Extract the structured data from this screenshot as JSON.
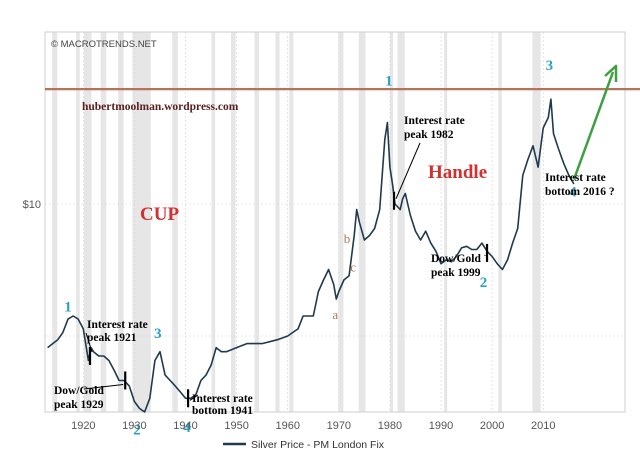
{
  "watermark": "© MACROTRENDS.NET",
  "blog": "hubertmoolman.wordpress.com",
  "legend_label": "Silver Price - PM London Fix",
  "colors": {
    "line": "#1f3a4f",
    "recession": "#e6e6e6",
    "resistance": "#b5735a",
    "wave": "#2aa0c8",
    "abc": "#b07a4e",
    "pattern": "#d23030",
    "arrow": "#3ca040",
    "grid": "#d4d4d4"
  },
  "chart_data": {
    "type": "line",
    "title": "",
    "xlabel": "",
    "ylabel": "",
    "series": [
      {
        "name": "Silver Price - PM London Fix",
        "x": [
          1913,
          1914,
          1915,
          1916,
          1917,
          1918,
          1919,
          1920,
          1921,
          1921.5,
          1922,
          1923,
          1924,
          1925,
          1926,
          1927,
          1928,
          1929,
          1930,
          1931,
          1932,
          1933,
          1934,
          1935,
          1936,
          1937,
          1938,
          1939,
          1940,
          1941,
          1942,
          1943,
          1944,
          1945,
          1946,
          1947,
          1948,
          1950,
          1952,
          1955,
          1958,
          1960,
          1962,
          1963,
          1964,
          1965,
          1966,
          1967,
          1968,
          1969,
          1969.5,
          1970,
          1971,
          1972,
          1973,
          1973.5,
          1974,
          1975,
          1976,
          1977,
          1978,
          1979,
          1979.5,
          1980,
          1980.5,
          1981,
          1982,
          1982.5,
          1983,
          1984,
          1985,
          1986,
          1987,
          1988,
          1989,
          1990,
          1991,
          1992,
          1993,
          1994,
          1995,
          1996,
          1997,
          1998,
          1999,
          2000,
          2001,
          2002,
          2003,
          2004,
          2005,
          2006,
          2007,
          2008,
          2009,
          2010,
          2011,
          2011.5,
          2012,
          2013,
          2014,
          2015,
          2016
        ],
        "y": [
          2.7,
          2.8,
          2.9,
          3.1,
          3.5,
          3.6,
          3.5,
          3.2,
          2.4,
          2.7,
          2.6,
          2.5,
          2.5,
          2.4,
          2.2,
          2.0,
          2.0,
          1.9,
          1.65,
          1.55,
          1.5,
          1.7,
          2.4,
          2.6,
          2.1,
          2.0,
          1.9,
          1.8,
          1.7,
          1.7,
          1.75,
          2.0,
          2.1,
          2.3,
          2.7,
          2.6,
          2.6,
          2.7,
          2.8,
          2.8,
          2.9,
          3.0,
          3.2,
          3.6,
          3.6,
          3.6,
          4.5,
          5.0,
          5.5,
          4.8,
          4.2,
          4.5,
          5.0,
          5.2,
          7.5,
          9.5,
          8.5,
          7.2,
          7.5,
          8.0,
          9.5,
          18.0,
          21.0,
          14.0,
          12.0,
          10.0,
          9.5,
          10.5,
          11.0,
          9.0,
          7.8,
          7.2,
          7.8,
          7.0,
          6.5,
          5.8,
          6.0,
          5.9,
          6.2,
          6.7,
          6.8,
          6.6,
          6.6,
          7.0,
          6.5,
          6.2,
          5.8,
          5.5,
          6.0,
          7.0,
          8.0,
          13.0,
          15.0,
          17.0,
          14.0,
          20.0,
          22.0,
          26.0,
          19.0,
          16.5,
          14.5,
          13.0,
          12.0
        ]
      }
    ],
    "x_ticks": [
      1920,
      1930,
      1940,
      1950,
      1960,
      1970,
      1980,
      1990,
      2000,
      2010
    ],
    "y_ticks": [
      {
        "value": 10,
        "label": "$10"
      }
    ],
    "xlim": [
      1912.5,
      2026
    ],
    "ylim": [
      1.5,
      48
    ],
    "y_scale": "log",
    "grid": true,
    "legend": "bottom-center",
    "recessions": [
      [
        1913.9,
        1914.9
      ],
      [
        1918.6,
        1919.3
      ],
      [
        1920.1,
        1921.6
      ],
      [
        1923.4,
        1924.5
      ],
      [
        1926.8,
        1927.9
      ],
      [
        1929.6,
        1933.2
      ],
      [
        1937.4,
        1938.5
      ],
      [
        1945.1,
        1945.8
      ],
      [
        1948.9,
        1949.8
      ],
      [
        1953.5,
        1954.4
      ],
      [
        1957.6,
        1958.4
      ],
      [
        1960.3,
        1961.1
      ],
      [
        1969.9,
        1970.9
      ],
      [
        1973.9,
        1975.2
      ],
      [
        1980.0,
        1980.6
      ],
      [
        1981.5,
        1982.9
      ],
      [
        1990.6,
        1991.2
      ],
      [
        2001.2,
        2001.9
      ],
      [
        2007.9,
        2009.5
      ]
    ],
    "resistance_level": 28.5,
    "annotations": {
      "wave_labels": [
        {
          "text": "1",
          "x": 1917,
          "y": 3.75
        },
        {
          "text": "2",
          "x": 1930.5,
          "y": 1.22
        },
        {
          "text": "3",
          "x": 1934.6,
          "y": 2.95
        },
        {
          "text": "4",
          "x": 1940.3,
          "y": 1.25
        },
        {
          "text": "1",
          "x": 1979.8,
          "y": 29.5
        },
        {
          "text": "2",
          "x": 1998.3,
          "y": 4.7
        },
        {
          "text": "3",
          "x": 2011.2,
          "y": 34
        },
        {
          "text": "4",
          "x": 2015.8,
          "y": 10.7
        }
      ],
      "abc_labels": [
        {
          "text": "b",
          "x": 1971.6,
          "y": 7.0
        },
        {
          "text": "c",
          "x": 1972.8,
          "y": 5.4
        },
        {
          "text": "a",
          "x": 1969.3,
          "y": 3.5
        }
      ],
      "notes": [
        {
          "lines": [
            "Interest rate",
            "peak 1921"
          ]
        },
        {
          "lines": [
            "Dow/Gold",
            "peak 1929"
          ]
        },
        {
          "lines": [
            "Interest rate",
            "bottom 1941"
          ]
        },
        {
          "lines": [
            "Interest rate",
            "peak 1982"
          ]
        },
        {
          "lines": [
            "Dow/Gold",
            "peak 1999"
          ]
        },
        {
          "lines": [
            "Interest rate",
            "bottom 2016 ?"
          ]
        }
      ],
      "patterns": [
        "CUP",
        "Handle"
      ]
    }
  }
}
